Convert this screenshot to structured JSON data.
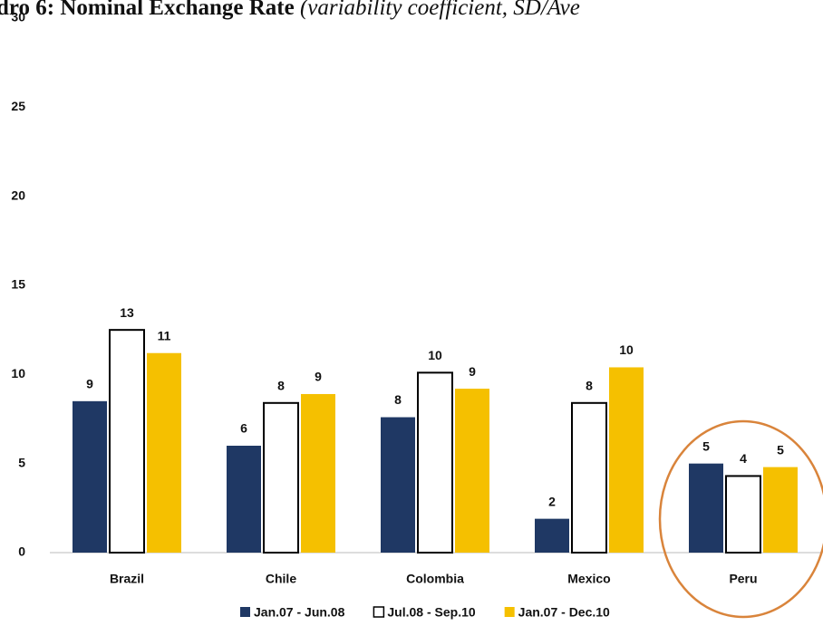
{
  "chart_data": {
    "type": "bar",
    "title": "dro 6: Nominal Exchange Rate",
    "subtitle": "(variability coefficient, SD/Ave",
    "categories": [
      "Brazil",
      "Chile",
      "Colombia",
      "Mexico",
      "Peru"
    ],
    "series": [
      {
        "name": "Jan.07 - Jun.08",
        "color": "#1f3864",
        "values": [
          8.5,
          6.0,
          7.6,
          1.9,
          5.0
        ],
        "value_labels": [
          "9",
          "6",
          "8",
          "2",
          "5"
        ]
      },
      {
        "name": "Jul.08 - Sep.10",
        "color": "#ffffff",
        "values": [
          12.5,
          8.4,
          10.1,
          8.4,
          4.3
        ],
        "value_labels": [
          "13",
          "8",
          "10",
          "8",
          "4"
        ]
      },
      {
        "name": "Jan.07 - Dec.10",
        "color": "#f5c000",
        "values": [
          11.2,
          8.9,
          9.2,
          10.4,
          4.8
        ],
        "value_labels": [
          "11",
          "9",
          "9",
          "10",
          "5"
        ]
      }
    ],
    "ylim": [
      0,
      30
    ],
    "yticks": [
      0,
      5,
      10,
      15,
      20,
      25,
      30
    ],
    "grid": false,
    "legend": "bottom"
  }
}
